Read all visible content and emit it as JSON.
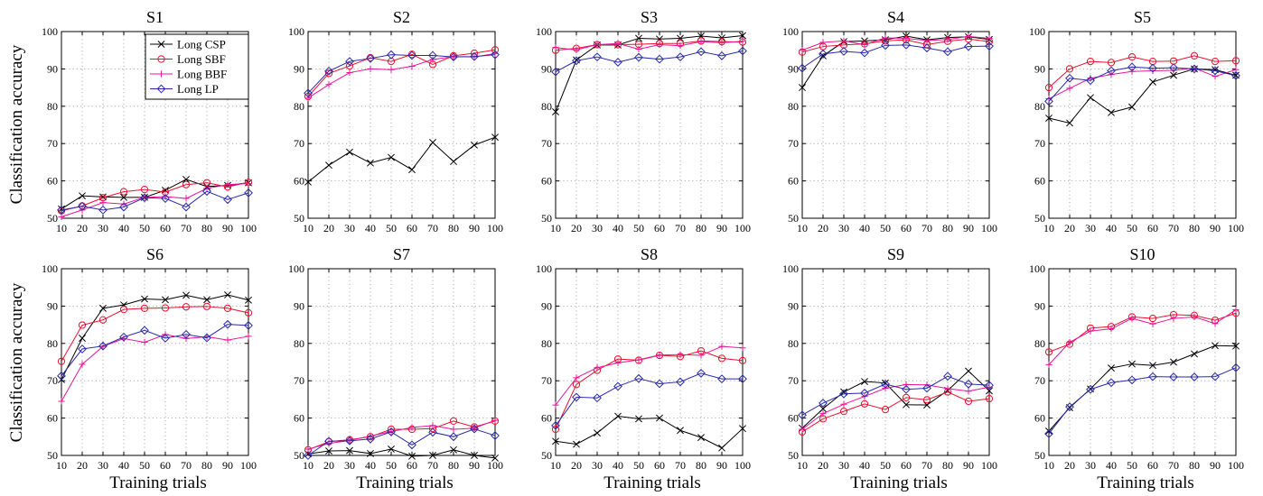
{
  "figure": {
    "row_ylabel": "Classification accuracy",
    "xlabel": "Training trials"
  },
  "legend": {
    "items": [
      {
        "name": "Long CSP",
        "color": "#000000",
        "marker": "x-icon"
      },
      {
        "name": "Long SBF",
        "color": "#e8102e",
        "marker": "circle-icon"
      },
      {
        "name": "Long BBF",
        "color": "#e6179a",
        "marker": "plus-icon"
      },
      {
        "name": "Long LP",
        "color": "#2a2aa8",
        "marker": "diamond-icon"
      }
    ]
  },
  "chart_data": [
    {
      "type": "line",
      "title": "S1",
      "x": [
        10,
        20,
        30,
        40,
        50,
        60,
        70,
        80,
        90,
        100
      ],
      "ylim": [
        50,
        100
      ],
      "yticks": [
        50,
        60,
        70,
        80,
        90,
        100
      ],
      "series": [
        {
          "name": "Long CSP",
          "values": [
            52.5,
            56,
            55.7,
            55.6,
            55.6,
            57.5,
            60.4,
            58.5,
            58.8,
            59.5
          ]
        },
        {
          "name": "Long SBF",
          "values": [
            52,
            53.3,
            55.5,
            57.1,
            57.7,
            57,
            59,
            59.5,
            58.4,
            59.6
          ]
        },
        {
          "name": "Long BBF",
          "values": [
            50.4,
            52.2,
            54.2,
            53.8,
            55.6,
            55.8,
            55.3,
            58,
            59,
            59.3
          ]
        },
        {
          "name": "Long LP",
          "values": [
            52.2,
            53.2,
            52.2,
            53,
            55.5,
            55.3,
            53,
            57.2,
            55,
            56.8
          ]
        }
      ]
    },
    {
      "type": "line",
      "title": "S2",
      "x": [
        10,
        20,
        30,
        40,
        50,
        60,
        70,
        80,
        90,
        100
      ],
      "ylim": [
        50,
        100
      ],
      "yticks": [
        50,
        60,
        70,
        80,
        90,
        100
      ],
      "series": [
        {
          "name": "Long CSP",
          "values": [
            59.7,
            64.2,
            67.7,
            64.8,
            66.3,
            63,
            70.3,
            65.2,
            69.6,
            71.7
          ]
        },
        {
          "name": "Long SBF",
          "values": [
            82.6,
            88.8,
            90.8,
            93,
            92,
            93.9,
            91.2,
            93.5,
            94.2,
            95.1
          ]
        },
        {
          "name": "Long BBF",
          "values": [
            82.2,
            85.8,
            89,
            90,
            89.8,
            90.7,
            92.5,
            93.3,
            93.2,
            94.1
          ]
        },
        {
          "name": "Long LP",
          "values": [
            83.5,
            89.4,
            92,
            92.8,
            93.8,
            93.6,
            93.6,
            93.2,
            93.3,
            93.8
          ]
        }
      ]
    },
    {
      "type": "line",
      "title": "S3",
      "x": [
        10,
        20,
        30,
        40,
        50,
        60,
        70,
        80,
        90,
        100
      ],
      "ylim": [
        50,
        100
      ],
      "yticks": [
        50,
        60,
        70,
        80,
        90,
        100
      ],
      "series": [
        {
          "name": "Long CSP",
          "values": [
            78.5,
            92.4,
            96.4,
            96.4,
            98.2,
            98,
            98.2,
            98.8,
            98.3,
            98.9
          ]
        },
        {
          "name": "Long SBF",
          "values": [
            95,
            95.5,
            96.5,
            96.5,
            96.6,
            96.8,
            96.8,
            97.5,
            97.3,
            97.2
          ]
        },
        {
          "name": "Long BBF",
          "values": [
            95.7,
            95.1,
            96.5,
            96.8,
            95.3,
            96.5,
            96.2,
            97.3,
            97,
            97.4
          ]
        },
        {
          "name": "Long LP",
          "values": [
            89.2,
            92.2,
            93.2,
            91.8,
            93.1,
            92.6,
            93.2,
            94.6,
            93.5,
            94.8
          ]
        }
      ]
    },
    {
      "type": "line",
      "title": "S4",
      "x": [
        10,
        20,
        30,
        40,
        50,
        60,
        70,
        80,
        90,
        100
      ],
      "ylim": [
        50,
        100
      ],
      "yticks": [
        50,
        60,
        70,
        80,
        90,
        100
      ],
      "series": [
        {
          "name": "Long CSP",
          "values": [
            85,
            93.5,
            97.3,
            97.5,
            97.8,
            98.8,
            97.8,
            98.4,
            98.6,
            97.9
          ]
        },
        {
          "name": "Long SBF",
          "values": [
            94.5,
            96,
            96.4,
            96.7,
            97.5,
            97.8,
            96.5,
            97.4,
            98,
            97.3
          ]
        },
        {
          "name": "Long BBF",
          "values": [
            95,
            97.1,
            97.5,
            96.5,
            98.3,
            98.2,
            97.6,
            97.9,
            98.7,
            98.2
          ]
        },
        {
          "name": "Long LP",
          "values": [
            90.2,
            94,
            94.7,
            94.3,
            96.3,
            96.4,
            95.6,
            94.6,
            96,
            96.1
          ]
        }
      ]
    },
    {
      "type": "line",
      "title": "S5",
      "x": [
        10,
        20,
        30,
        40,
        50,
        60,
        70,
        80,
        90,
        100
      ],
      "ylim": [
        50,
        100
      ],
      "yticks": [
        50,
        60,
        70,
        80,
        90,
        100
      ],
      "series": [
        {
          "name": "Long CSP",
          "values": [
            76.8,
            75.5,
            82.3,
            78.3,
            79.8,
            86.5,
            88.3,
            90,
            89.8,
            88.3
          ]
        },
        {
          "name": "Long SBF",
          "values": [
            85,
            90,
            92,
            91.7,
            93.2,
            92,
            92.1,
            93.5,
            92,
            92.2
          ]
        },
        {
          "name": "Long BBF",
          "values": [
            82,
            84.8,
            87.5,
            88.5,
            89.3,
            89.5,
            89.6,
            90.2,
            88,
            89.8
          ]
        },
        {
          "name": "Long LP",
          "values": [
            81.3,
            87.5,
            86.9,
            89.5,
            90.5,
            90.2,
            90.3,
            90,
            89.5,
            88.2
          ]
        }
      ]
    },
    {
      "type": "line",
      "title": "S6",
      "x": [
        10,
        20,
        30,
        40,
        50,
        60,
        70,
        80,
        90,
        100
      ],
      "ylim": [
        50,
        100
      ],
      "yticks": [
        50,
        60,
        70,
        80,
        90,
        100
      ],
      "series": [
        {
          "name": "Long CSP",
          "values": [
            70.3,
            81.4,
            89.4,
            90.3,
            91.9,
            91.7,
            92.9,
            91.7,
            93,
            91.6
          ]
        },
        {
          "name": "Long SBF",
          "values": [
            75.2,
            84.9,
            86.3,
            89.1,
            89.4,
            89.5,
            89.8,
            89.9,
            89.4,
            88.2
          ]
        },
        {
          "name": "Long BBF",
          "values": [
            64.5,
            74.4,
            79.2,
            81.3,
            80.3,
            82.4,
            81.3,
            81.8,
            80.9,
            81.9
          ]
        },
        {
          "name": "Long LP",
          "values": [
            71.3,
            78.5,
            79.3,
            81.7,
            83.5,
            81.4,
            82.4,
            81.5,
            85.1,
            84.8
          ]
        }
      ]
    },
    {
      "type": "line",
      "title": "S7",
      "x": [
        10,
        20,
        30,
        40,
        50,
        60,
        70,
        80,
        90,
        100
      ],
      "ylim": [
        50,
        100
      ],
      "yticks": [
        50,
        60,
        70,
        80,
        90,
        100
      ],
      "series": [
        {
          "name": "Long CSP",
          "values": [
            50.4,
            51.2,
            51.3,
            50.5,
            51.7,
            49.8,
            50,
            51.5,
            50,
            49.3
          ]
        },
        {
          "name": "Long SBF",
          "values": [
            51.5,
            53.7,
            54.2,
            55,
            57,
            57,
            57.2,
            59.2,
            57.6,
            59.2
          ]
        },
        {
          "name": "Long BBF",
          "values": [
            51.7,
            53.2,
            54,
            55.2,
            56.4,
            57.5,
            58,
            57,
            57.3,
            59.4
          ]
        },
        {
          "name": "Long LP",
          "values": [
            50,
            53.8,
            53.9,
            54.4,
            56.3,
            52.8,
            56.2,
            55,
            57.1,
            55.3
          ]
        }
      ]
    },
    {
      "type": "line",
      "title": "S8",
      "x": [
        10,
        20,
        30,
        40,
        50,
        60,
        70,
        80,
        90,
        100
      ],
      "ylim": [
        50,
        100
      ],
      "yticks": [
        50,
        60,
        70,
        80,
        90,
        100
      ],
      "series": [
        {
          "name": "Long CSP",
          "values": [
            53.8,
            53,
            56,
            60.5,
            59.8,
            60,
            56.7,
            54.8,
            52,
            57.2
          ]
        },
        {
          "name": "Long SBF",
          "values": [
            57,
            69,
            72.8,
            75.8,
            75.5,
            76.8,
            76.5,
            78,
            76,
            75.4
          ]
        },
        {
          "name": "Long BBF",
          "values": [
            63.5,
            70.8,
            73.5,
            74.8,
            75.6,
            76.9,
            77,
            76.8,
            79.2,
            78.8
          ]
        },
        {
          "name": "Long LP",
          "values": [
            58,
            65.6,
            65.4,
            68.5,
            70.6,
            69.2,
            69.7,
            72,
            70.5,
            70.5
          ]
        }
      ]
    },
    {
      "type": "line",
      "title": "S9",
      "x": [
        10,
        20,
        30,
        40,
        50,
        60,
        70,
        80,
        90,
        100
      ],
      "ylim": [
        50,
        100
      ],
      "yticks": [
        50,
        60,
        70,
        80,
        90,
        100
      ],
      "series": [
        {
          "name": "Long CSP",
          "values": [
            57.3,
            62.5,
            67,
            69.8,
            69.4,
            63.6,
            63.5,
            67.4,
            72.6,
            67.3
          ]
        },
        {
          "name": "Long SBF",
          "values": [
            56.3,
            59.8,
            61.8,
            63.8,
            62.3,
            65.5,
            64.9,
            67,
            64.5,
            65.2
          ]
        },
        {
          "name": "Long BBF",
          "values": [
            57,
            61.2,
            63.7,
            65.8,
            68,
            69,
            68.9,
            67.9,
            67.2,
            68.3
          ]
        },
        {
          "name": "Long LP",
          "values": [
            60.8,
            64,
            66.5,
            66.7,
            69.1,
            67.7,
            68,
            71.2,
            69.1,
            68.8
          ]
        }
      ]
    },
    {
      "type": "line",
      "title": "S10",
      "x": [
        10,
        20,
        30,
        40,
        50,
        60,
        70,
        80,
        90,
        100
      ],
      "ylim": [
        50,
        100
      ],
      "yticks": [
        50,
        60,
        70,
        80,
        90,
        100
      ],
      "series": [
        {
          "name": "Long CSP",
          "values": [
            56.5,
            62.8,
            67.8,
            73.4,
            74.5,
            74.1,
            75,
            77.2,
            79.4,
            79.3
          ]
        },
        {
          "name": "Long SBF",
          "values": [
            77.7,
            79.8,
            84.1,
            84.5,
            87.1,
            86.7,
            87.7,
            87.5,
            86.2,
            88.1
          ]
        },
        {
          "name": "Long BBF",
          "values": [
            74.3,
            80.3,
            83.3,
            83.9,
            86.7,
            85.2,
            86.7,
            87.1,
            85.3,
            89
          ]
        },
        {
          "name": "Long LP",
          "values": [
            55.8,
            63,
            67.7,
            69.5,
            70.2,
            71.1,
            71,
            71,
            71.1,
            73.5
          ]
        }
      ]
    }
  ]
}
